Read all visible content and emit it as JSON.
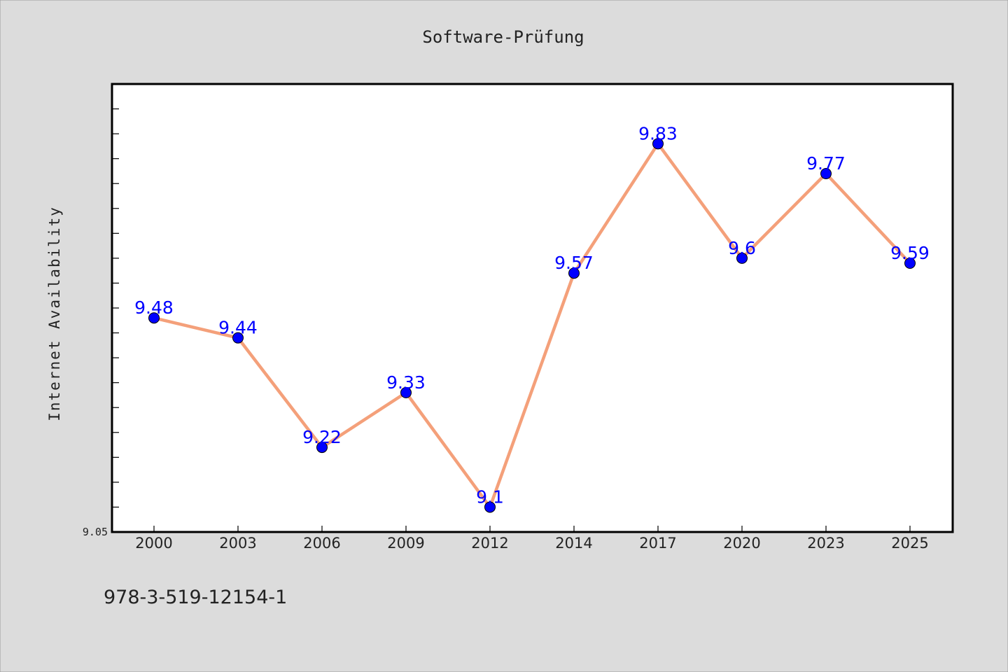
{
  "figure_background": "#dcdcdc",
  "footer": "978-3-519-12154-1",
  "chart_data": {
    "type": "line",
    "title": "Software-Prüfung",
    "xlabel": "",
    "ylabel": "Internet Availability",
    "categories": [
      "2000",
      "2003",
      "2006",
      "2009",
      "2012",
      "2014",
      "2017",
      "2020",
      "2023",
      "2025"
    ],
    "series": [
      {
        "values": [
          9.48,
          9.44,
          9.22,
          9.33,
          9.1,
          9.57,
          9.83,
          9.6,
          9.77,
          9.59
        ],
        "data_labels": [
          "9.48",
          "9.44",
          "9.22",
          "9.33",
          "9.1",
          "9.57",
          "9.83",
          "9.6",
          "9.77",
          "9.59"
        ],
        "line_color": "#f4a07a",
        "marker_color": "#0000ff"
      }
    ],
    "ylim": [
      9.05,
      9.95
    ],
    "yticks_labeled": [
      "9.05"
    ],
    "grid": false,
    "legend": "none"
  }
}
